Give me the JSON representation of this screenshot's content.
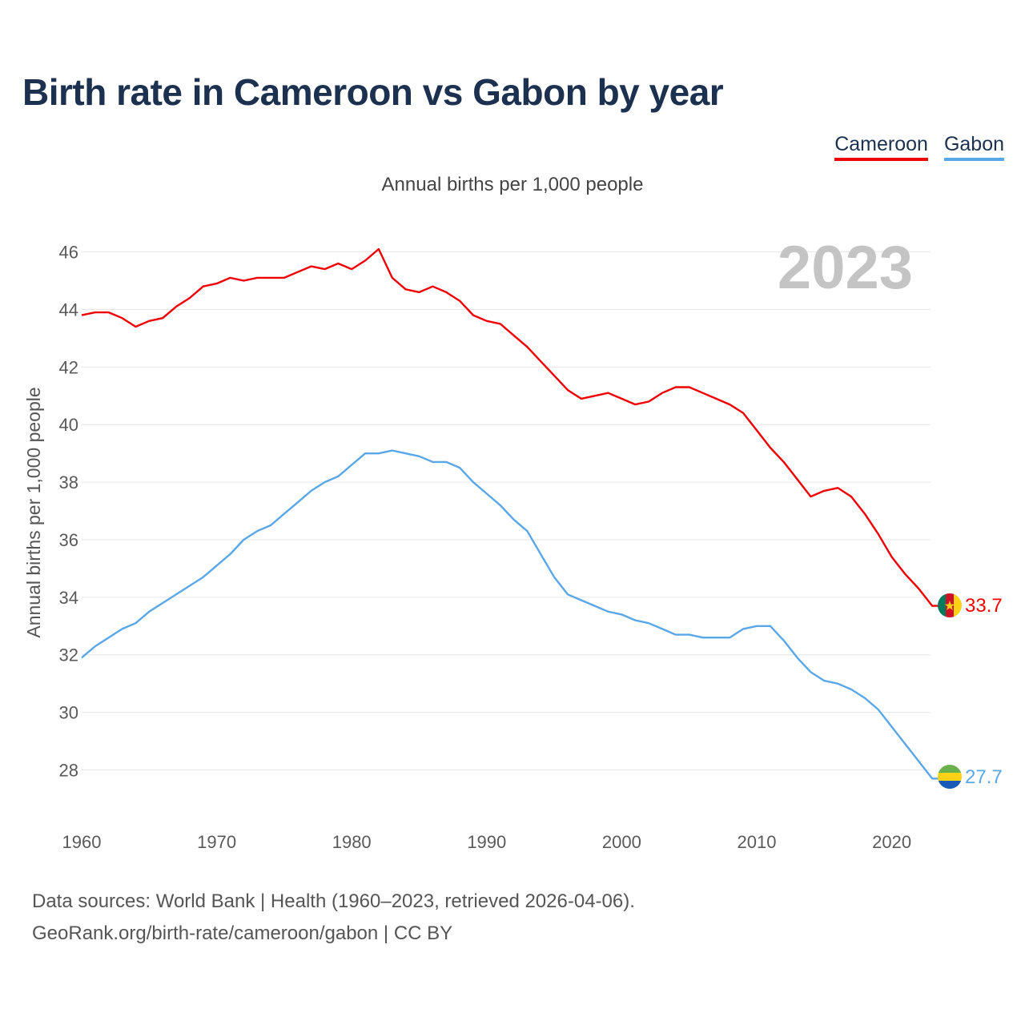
{
  "title": "Birth rate in Cameroon vs Gabon by year",
  "subtitle": "Annual births per 1,000 people",
  "legend": [
    {
      "name": "Cameroon",
      "color": "#f00000"
    },
    {
      "name": "Gabon",
      "color": "#5aa7e8"
    }
  ],
  "year_display": "2023",
  "end_labels": {
    "cameroon": "33.7",
    "gabon": "27.7"
  },
  "flags": {
    "cameroon": "cameroon-flag-icon",
    "gabon": "gabon-flag-icon"
  },
  "source": {
    "line1": "Data sources: World Bank | Health (1960–2023, retrieved 2026-04-06).",
    "line2": "GeoRank.org/birth-rate/cameroon/gabon | CC BY"
  },
  "chart_data": {
    "type": "line",
    "title": "Birth rate in Cameroon vs Gabon by year",
    "xlabel": "",
    "ylabel": "Annual births per 1,000 people",
    "xlim": [
      1960,
      2023
    ],
    "ylim": [
      27,
      47
    ],
    "x_ticks": [
      1960,
      1970,
      1980,
      1990,
      2000,
      2010,
      2020
    ],
    "y_ticks": [
      28,
      30,
      32,
      34,
      36,
      38,
      40,
      42,
      44,
      46
    ],
    "grid": true,
    "legend_position": "top-right",
    "x": [
      1960,
      1961,
      1962,
      1963,
      1964,
      1965,
      1966,
      1967,
      1968,
      1969,
      1970,
      1971,
      1972,
      1973,
      1974,
      1975,
      1976,
      1977,
      1978,
      1979,
      1980,
      1981,
      1982,
      1983,
      1984,
      1985,
      1986,
      1987,
      1988,
      1989,
      1990,
      1991,
      1992,
      1993,
      1994,
      1995,
      1996,
      1997,
      1998,
      1999,
      2000,
      2001,
      2002,
      2003,
      2004,
      2005,
      2006,
      2007,
      2008,
      2009,
      2010,
      2011,
      2012,
      2013,
      2014,
      2015,
      2016,
      2017,
      2018,
      2019,
      2020,
      2021,
      2022,
      2023
    ],
    "series": [
      {
        "name": "Cameroon",
        "color": "#f00000",
        "values": [
          43.8,
          43.9,
          43.9,
          43.7,
          43.4,
          43.6,
          43.7,
          44.1,
          44.4,
          44.8,
          44.9,
          45.1,
          45.0,
          45.1,
          45.1,
          45.1,
          45.3,
          45.5,
          45.4,
          45.6,
          45.4,
          45.7,
          46.1,
          45.1,
          44.7,
          44.6,
          44.8,
          44.6,
          44.3,
          43.8,
          43.6,
          43.5,
          43.1,
          42.7,
          42.2,
          41.7,
          41.2,
          40.9,
          41.0,
          41.1,
          40.9,
          40.7,
          40.8,
          41.1,
          41.3,
          41.3,
          41.1,
          40.9,
          40.7,
          40.4,
          39.8,
          39.2,
          38.7,
          38.1,
          37.5,
          37.7,
          37.8,
          37.5,
          36.9,
          36.2,
          35.4,
          34.8,
          34.3,
          33.7
        ]
      },
      {
        "name": "Gabon",
        "color": "#5aa7e8",
        "values": [
          31.9,
          32.3,
          32.6,
          32.9,
          33.1,
          33.5,
          33.8,
          34.1,
          34.4,
          34.7,
          35.1,
          35.5,
          36.0,
          36.3,
          36.5,
          36.9,
          37.3,
          37.7,
          38.0,
          38.2,
          38.6,
          39.0,
          39.0,
          39.1,
          39.0,
          38.9,
          38.7,
          38.7,
          38.5,
          38.0,
          37.6,
          37.2,
          36.7,
          36.3,
          35.5,
          34.7,
          34.1,
          33.9,
          33.7,
          33.5,
          33.4,
          33.2,
          33.1,
          32.9,
          32.7,
          32.7,
          32.6,
          32.6,
          32.6,
          32.9,
          33.0,
          33.0,
          32.5,
          31.9,
          31.4,
          31.1,
          31.0,
          30.8,
          30.5,
          30.1,
          29.5,
          28.9,
          28.3,
          27.7
        ]
      }
    ]
  }
}
